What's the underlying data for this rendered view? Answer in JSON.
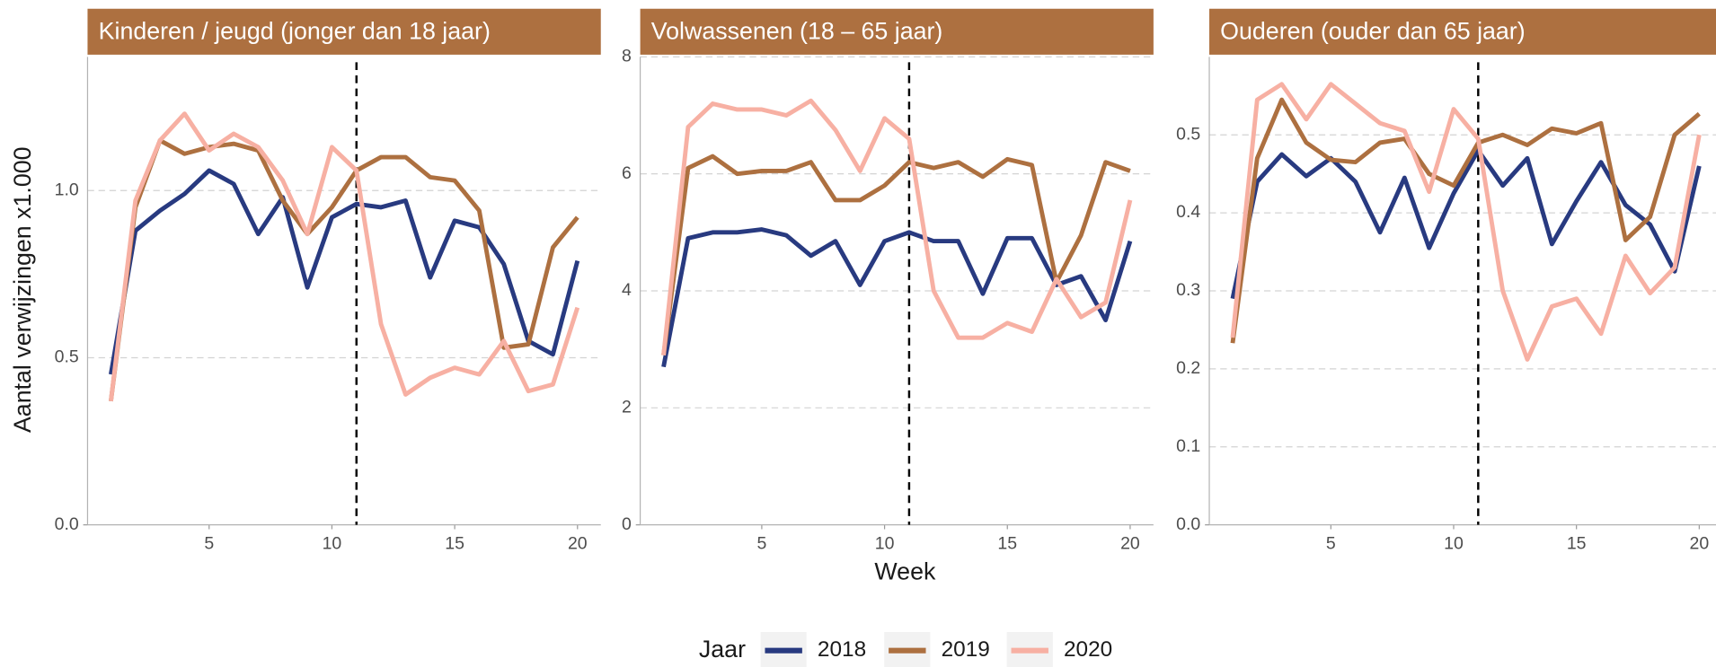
{
  "y_label": "Aantal verwijzingen x1.000",
  "x_label": "Week",
  "legend": {
    "title": "Jaar",
    "entries": [
      {
        "name": "2018",
        "color": "#283a80"
      },
      {
        "name": "2019",
        "color": "#ad7040"
      },
      {
        "name": "2020",
        "color": "#f7b0a3"
      }
    ]
  },
  "chart_data": [
    {
      "type": "line",
      "title": "Kinderen / jeugd (jonger dan 18 jaar)",
      "x": [
        1,
        2,
        3,
        4,
        5,
        6,
        7,
        8,
        9,
        10,
        11,
        12,
        13,
        14,
        15,
        16,
        17,
        18,
        19,
        20
      ],
      "xlim": [
        0.05,
        20.95
      ],
      "xticks": [
        5,
        10,
        15,
        20
      ],
      "ylim": [
        0,
        1.4
      ],
      "yticks": [
        {
          "value": 0,
          "label": "0.0"
        },
        0.5,
        {
          "value": 1,
          "label": "1.0"
        }
      ],
      "grid": true,
      "vline": 11,
      "series": [
        {
          "values": [
            0.45,
            0.88,
            0.94,
            0.99,
            1.06,
            1.02,
            0.87,
            0.98,
            0.71,
            0.92,
            0.96,
            0.95,
            0.97,
            0.74,
            0.91,
            0.89,
            0.78,
            0.55,
            0.51,
            0.79
          ]
        },
        {
          "values": [
            0.37,
            0.95,
            1.15,
            1.11,
            1.13,
            1.14,
            1.12,
            0.97,
            0.87,
            0.95,
            1.06,
            1.1,
            1.1,
            1.04,
            1.03,
            0.94,
            0.53,
            0.54,
            0.83,
            0.92
          ]
        },
        {
          "values": [
            0.37,
            0.97,
            1.15,
            1.23,
            1.12,
            1.17,
            1.13,
            1.03,
            0.87,
            1.13,
            1.06,
            0.6,
            0.39,
            0.44,
            0.47,
            0.45,
            0.55,
            0.4,
            0.42,
            0.65
          ]
        }
      ]
    },
    {
      "type": "line",
      "title": "Volwassenen (18 – 65 jaar)",
      "x": [
        1,
        2,
        3,
        4,
        5,
        6,
        7,
        8,
        9,
        10,
        11,
        12,
        13,
        14,
        15,
        16,
        17,
        18,
        19,
        20
      ],
      "xlim": [
        0.05,
        20.95
      ],
      "xticks": [
        5,
        10,
        15,
        20
      ],
      "ylim": [
        0,
        8
      ],
      "yticks": [
        0,
        2,
        4,
        6,
        8
      ],
      "grid": true,
      "vline": 11,
      "series": [
        {
          "values": [
            2.7,
            4.9,
            5.0,
            5.0,
            5.05,
            4.95,
            4.6,
            4.85,
            4.1,
            4.85,
            5.0,
            4.85,
            4.85,
            3.95,
            4.9,
            4.9,
            4.1,
            4.25,
            3.5,
            4.85
          ]
        },
        {
          "values": [
            2.9,
            6.1,
            6.3,
            6.0,
            6.05,
            6.05,
            6.2,
            5.55,
            5.55,
            5.8,
            6.2,
            6.1,
            6.2,
            5.95,
            6.25,
            6.15,
            4.15,
            4.95,
            6.2,
            6.05
          ]
        },
        {
          "values": [
            2.9,
            6.8,
            7.2,
            7.1,
            7.1,
            7.0,
            7.25,
            6.75,
            6.05,
            6.95,
            6.6,
            4.0,
            3.2,
            3.2,
            3.45,
            3.3,
            4.2,
            3.55,
            3.8,
            5.55
          ]
        }
      ]
    },
    {
      "type": "line",
      "title": "Ouderen (ouder dan 65 jaar)",
      "x": [
        1,
        2,
        3,
        4,
        5,
        6,
        7,
        8,
        9,
        10,
        11,
        12,
        13,
        14,
        15,
        16,
        17,
        18,
        19,
        20
      ],
      "xlim": [
        0.05,
        20.95
      ],
      "xticks": [
        5,
        10,
        15,
        20
      ],
      "ylim": [
        0,
        0.6
      ],
      "yticks": [
        {
          "value": 0,
          "label": "0.0"
        },
        0.1,
        0.2,
        0.3,
        0.4,
        0.5
      ],
      "grid": true,
      "vline": 11,
      "series": [
        {
          "values": [
            0.29,
            0.44,
            0.475,
            0.447,
            0.47,
            0.44,
            0.375,
            0.445,
            0.355,
            0.425,
            0.48,
            0.435,
            0.47,
            0.36,
            0.415,
            0.465,
            0.41,
            0.385,
            0.325,
            0.46
          ]
        },
        {
          "values": [
            0.233,
            0.47,
            0.545,
            0.49,
            0.468,
            0.465,
            0.49,
            0.495,
            0.45,
            0.435,
            0.49,
            0.5,
            0.487,
            0.508,
            0.502,
            0.515,
            0.365,
            0.395,
            0.5,
            0.527
          ]
        },
        {
          "values": [
            0.24,
            0.545,
            0.565,
            0.52,
            0.565,
            0.54,
            0.515,
            0.505,
            0.427,
            0.533,
            0.495,
            0.3,
            0.212,
            0.28,
            0.29,
            0.245,
            0.345,
            0.297,
            0.33,
            0.5
          ]
        }
      ]
    }
  ]
}
